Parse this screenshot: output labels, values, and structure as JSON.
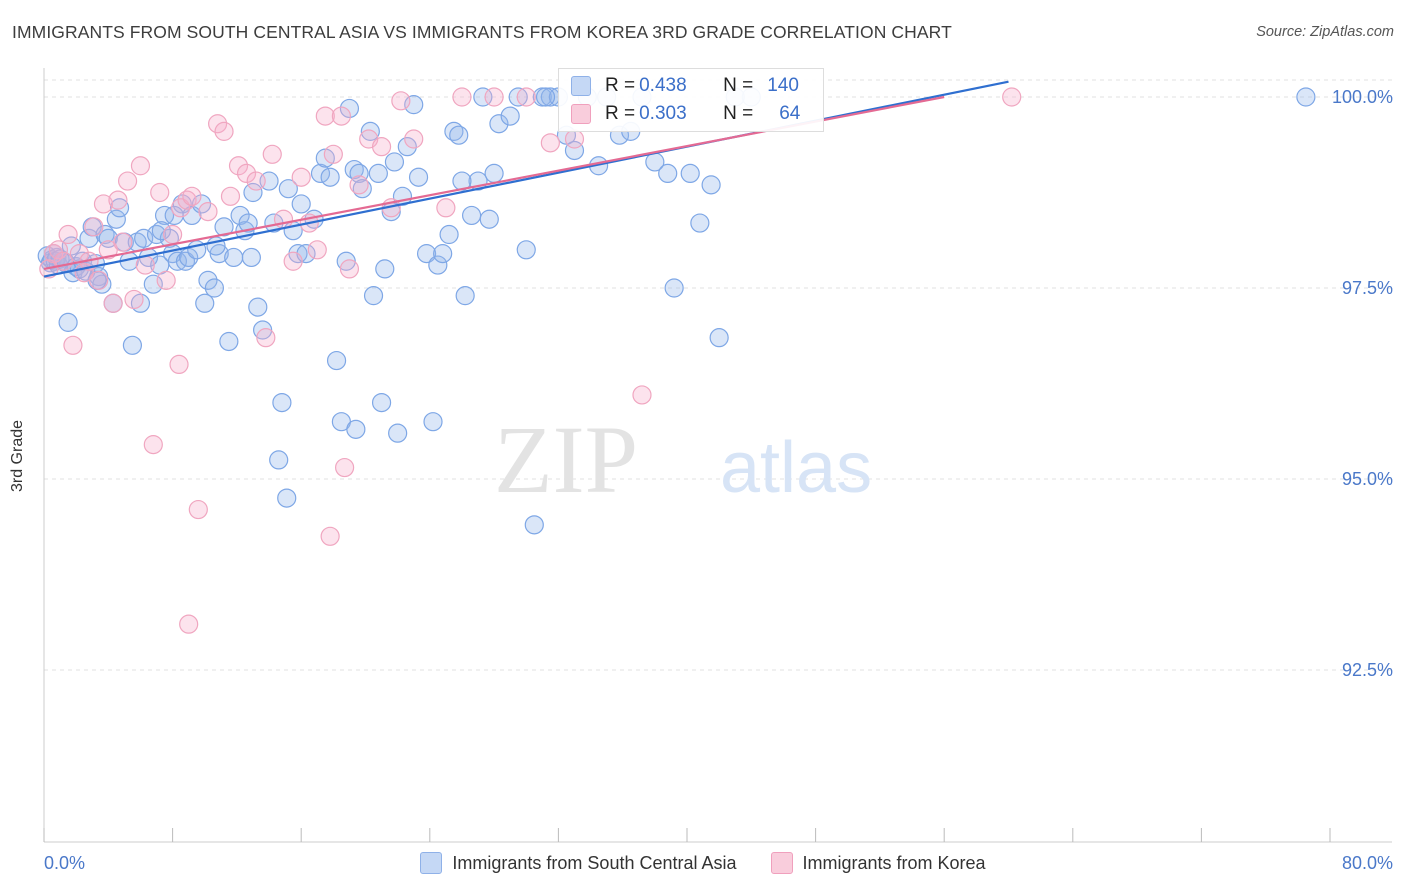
{
  "title": "IMMIGRANTS FROM SOUTH CENTRAL ASIA VS IMMIGRANTS FROM KOREA 3RD GRADE CORRELATION CHART",
  "source": "Source: ZipAtlas.com",
  "watermark": {
    "zip": "ZIP",
    "atlas": "atlas"
  },
  "colors": {
    "blue": "#6a9be0",
    "blue_line": "#2f6fd0",
    "pink": "#f29bb8",
    "pink_line": "#e46a93",
    "axis_text": "#4a78c9"
  },
  "stats": {
    "blue": {
      "r_label": "R =",
      "r": "0.438",
      "n_label": "N =",
      "n": "140"
    },
    "pink": {
      "r_label": "R =",
      "r": "0.303",
      "n_label": "N =",
      "n": "64"
    }
  },
  "chart_data": {
    "type": "scatter",
    "title": "IMMIGRANTS FROM SOUTH CENTRAL ASIA VS IMMIGRANTS FROM KOREA 3RD GRADE CORRELATION CHART",
    "xlabel": "",
    "ylabel": "3rd Grade",
    "xlim": [
      0,
      80
    ],
    "ylim": [
      90.0,
      100.5
    ],
    "x_tick_labels": [
      "0.0%",
      "80.0%"
    ],
    "y_ticks": [
      {
        "value": 100.0,
        "label": "100.0%"
      },
      {
        "value": 97.5,
        "label": "97.5%"
      },
      {
        "value": 95.0,
        "label": "95.0%"
      },
      {
        "value": 92.5,
        "label": "92.5%"
      }
    ],
    "legend_placement": "bottom-center",
    "series": [
      {
        "name": "Immigrants from South Central Asia",
        "color": "blue",
        "trend": {
          "x0": 0,
          "y0": 97.65,
          "x1": 60,
          "y1": 100.2
        },
        "points": [
          [
            0.2,
            97.92
          ],
          [
            0.4,
            97.83
          ],
          [
            0.5,
            97.87
          ],
          [
            0.6,
            97.95
          ],
          [
            0.7,
            97.85
          ],
          [
            0.8,
            97.9
          ],
          [
            0.9,
            97.8
          ],
          [
            1.0,
            97.88
          ],
          [
            1.2,
            97.85
          ],
          [
            1.4,
            97.82
          ],
          [
            1.5,
            97.05
          ],
          [
            1.7,
            98.05
          ],
          [
            1.8,
            97.7
          ],
          [
            2.0,
            97.78
          ],
          [
            2.2,
            97.75
          ],
          [
            2.4,
            97.85
          ],
          [
            2.6,
            97.72
          ],
          [
            2.8,
            98.15
          ],
          [
            3.0,
            98.3
          ],
          [
            3.2,
            97.82
          ],
          [
            3.4,
            97.65
          ],
          [
            3.6,
            97.55
          ],
          [
            3.8,
            98.2
          ],
          [
            4.0,
            98.15
          ],
          [
            4.3,
            97.3
          ],
          [
            4.5,
            98.4
          ],
          [
            4.7,
            98.55
          ],
          [
            5.0,
            98.1
          ],
          [
            5.3,
            97.85
          ],
          [
            5.5,
            96.75
          ],
          [
            5.8,
            98.1
          ],
          [
            6.0,
            97.3
          ],
          [
            6.2,
            98.15
          ],
          [
            6.5,
            97.9
          ],
          [
            6.8,
            97.55
          ],
          [
            7.0,
            98.2
          ],
          [
            7.2,
            97.8
          ],
          [
            7.5,
            98.45
          ],
          [
            7.8,
            98.15
          ],
          [
            8.0,
            97.95
          ],
          [
            8.3,
            97.85
          ],
          [
            8.6,
            98.6
          ],
          [
            8.8,
            97.85
          ],
          [
            9.0,
            97.9
          ],
          [
            9.2,
            98.45
          ],
          [
            9.5,
            98.0
          ],
          [
            9.8,
            98.6
          ],
          [
            10.0,
            97.3
          ],
          [
            10.2,
            97.6
          ],
          [
            10.6,
            97.5
          ],
          [
            10.9,
            97.95
          ],
          [
            11.2,
            98.3
          ],
          [
            11.5,
            96.8
          ],
          [
            11.8,
            97.9
          ],
          [
            12.2,
            98.45
          ],
          [
            12.5,
            98.25
          ],
          [
            12.7,
            98.35
          ],
          [
            13.0,
            98.75
          ],
          [
            13.3,
            97.25
          ],
          [
            13.6,
            96.95
          ],
          [
            14.0,
            98.9
          ],
          [
            14.3,
            98.35
          ],
          [
            14.8,
            96.0
          ],
          [
            15.2,
            98.8
          ],
          [
            15.5,
            98.25
          ],
          [
            15.8,
            97.95
          ],
          [
            16.0,
            98.6
          ],
          [
            16.3,
            97.95
          ],
          [
            16.8,
            98.4
          ],
          [
            17.2,
            99.0
          ],
          [
            17.5,
            99.2
          ],
          [
            17.8,
            98.95
          ],
          [
            18.2,
            96.55
          ],
          [
            18.5,
            95.75
          ],
          [
            18.8,
            97.85
          ],
          [
            19.0,
            99.85
          ],
          [
            19.3,
            99.05
          ],
          [
            19.6,
            99.0
          ],
          [
            19.8,
            98.8
          ],
          [
            20.3,
            99.55
          ],
          [
            20.5,
            97.4
          ],
          [
            20.8,
            99.0
          ],
          [
            21.2,
            97.75
          ],
          [
            21.6,
            98.5
          ],
          [
            21.8,
            99.15
          ],
          [
            22.0,
            95.6
          ],
          [
            22.3,
            98.7
          ],
          [
            22.6,
            99.35
          ],
          [
            23.0,
            99.9
          ],
          [
            23.3,
            98.95
          ],
          [
            23.8,
            97.95
          ],
          [
            24.2,
            95.75
          ],
          [
            24.5,
            97.8
          ],
          [
            24.8,
            97.95
          ],
          [
            25.2,
            98.2
          ],
          [
            25.5,
            99.55
          ],
          [
            25.8,
            99.5
          ],
          [
            26.2,
            97.4
          ],
          [
            26.6,
            98.45
          ],
          [
            27.0,
            98.9
          ],
          [
            27.3,
            100.0
          ],
          [
            27.7,
            98.4
          ],
          [
            28.0,
            99.0
          ],
          [
            28.3,
            99.65
          ],
          [
            29.0,
            99.75
          ],
          [
            29.5,
            100.0
          ],
          [
            30.0,
            98.0
          ],
          [
            30.5,
            94.4
          ],
          [
            31.0,
            100.0
          ],
          [
            31.5,
            100.0
          ],
          [
            32.0,
            100.0
          ],
          [
            32.5,
            99.5
          ],
          [
            33.0,
            99.3
          ],
          [
            33.8,
            100.0
          ],
          [
            34.5,
            99.1
          ],
          [
            35.0,
            100.0
          ],
          [
            35.8,
            99.5
          ],
          [
            36.5,
            99.55
          ],
          [
            37.2,
            100.0
          ],
          [
            38.0,
            99.15
          ],
          [
            38.8,
            99.0
          ],
          [
            39.2,
            97.5
          ],
          [
            40.2,
            99.0
          ],
          [
            40.8,
            98.35
          ],
          [
            41.5,
            98.85
          ],
          [
            42.0,
            96.85
          ],
          [
            44.0,
            100.0
          ],
          [
            43.0,
            100.0
          ],
          [
            78.5,
            100.0
          ],
          [
            31.2,
            100.0
          ],
          [
            21.0,
            96.0
          ],
          [
            19.4,
            95.65
          ],
          [
            14.6,
            95.25
          ],
          [
            15.1,
            94.75
          ],
          [
            10.7,
            98.05
          ],
          [
            12.9,
            97.9
          ],
          [
            7.3,
            98.25
          ],
          [
            8.1,
            98.45
          ],
          [
            3.3,
            97.6
          ],
          [
            26.0,
            98.9
          ]
        ]
      },
      {
        "name": "Immigrants from Korea",
        "color": "pink",
        "trend": {
          "x0": 0,
          "y0": 97.75,
          "x1": 56,
          "y1": 100.0
        },
        "points": [
          [
            0.3,
            97.75
          ],
          [
            0.6,
            97.95
          ],
          [
            0.9,
            98.0
          ],
          [
            1.2,
            97.85
          ],
          [
            1.5,
            98.2
          ],
          [
            1.8,
            96.75
          ],
          [
            2.2,
            97.95
          ],
          [
            2.5,
            97.7
          ],
          [
            2.8,
            97.85
          ],
          [
            3.1,
            98.3
          ],
          [
            3.4,
            97.6
          ],
          [
            3.7,
            98.6
          ],
          [
            4.0,
            98.0
          ],
          [
            4.3,
            97.3
          ],
          [
            4.6,
            98.65
          ],
          [
            4.9,
            98.1
          ],
          [
            5.2,
            98.9
          ],
          [
            5.6,
            97.35
          ],
          [
            6.0,
            99.1
          ],
          [
            6.3,
            97.8
          ],
          [
            6.8,
            95.45
          ],
          [
            7.2,
            98.75
          ],
          [
            7.6,
            97.6
          ],
          [
            8.0,
            98.2
          ],
          [
            8.5,
            98.55
          ],
          [
            8.9,
            98.65
          ],
          [
            9.2,
            98.7
          ],
          [
            9.6,
            94.6
          ],
          [
            10.2,
            98.5
          ],
          [
            10.8,
            99.65
          ],
          [
            11.2,
            99.55
          ],
          [
            11.6,
            98.7
          ],
          [
            12.1,
            99.1
          ],
          [
            12.6,
            99.0
          ],
          [
            13.2,
            98.9
          ],
          [
            13.8,
            96.85
          ],
          [
            14.2,
            99.25
          ],
          [
            14.9,
            98.4
          ],
          [
            15.5,
            97.85
          ],
          [
            16.0,
            98.95
          ],
          [
            16.5,
            98.35
          ],
          [
            17.0,
            98.0
          ],
          [
            17.5,
            99.75
          ],
          [
            18.0,
            99.25
          ],
          [
            18.5,
            99.75
          ],
          [
            19.0,
            97.75
          ],
          [
            19.6,
            98.85
          ],
          [
            20.2,
            99.45
          ],
          [
            21.0,
            99.35
          ],
          [
            21.6,
            98.55
          ],
          [
            22.2,
            99.95
          ],
          [
            23.0,
            99.45
          ],
          [
            25.0,
            98.55
          ],
          [
            26.0,
            100.0
          ],
          [
            28.0,
            100.0
          ],
          [
            30.0,
            100.0
          ],
          [
            31.5,
            99.4
          ],
          [
            33.0,
            99.45
          ],
          [
            37.2,
            96.1
          ],
          [
            60.2,
            100.0
          ],
          [
            8.4,
            96.5
          ],
          [
            9.0,
            93.1
          ],
          [
            17.8,
            94.25
          ],
          [
            18.7,
            95.15
          ]
        ]
      }
    ]
  },
  "legend": [
    {
      "label": "Immigrants from South Central Asia",
      "color": "blue"
    },
    {
      "label": "Immigrants from Korea",
      "color": "pink"
    }
  ]
}
